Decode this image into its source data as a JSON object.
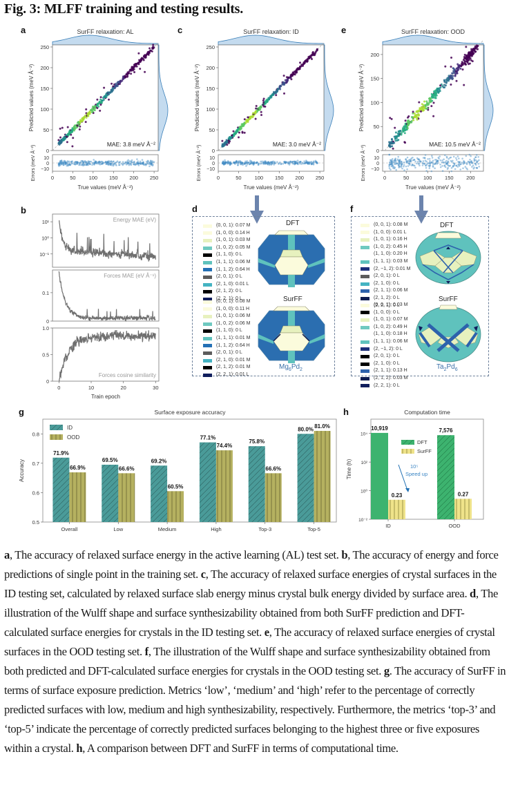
{
  "figure": {
    "title": "Fig. 3: MLFF training and testing results.",
    "panel_letters": [
      "a",
      "b",
      "c",
      "d",
      "e",
      "f",
      "g",
      "h"
    ]
  },
  "chart_data": [
    {
      "id": "a",
      "type": "scatter",
      "title": "SurFF relaxation: AL",
      "xlabel": "True values (meV Å⁻²)",
      "ylabel": "Predicted values (meV Å⁻²)",
      "xlim": [
        0,
        260
      ],
      "ylim": [
        0,
        255
      ],
      "xticks": [
        0,
        50,
        100,
        150,
        200,
        250
      ],
      "yticks": [
        0,
        50,
        100,
        150,
        200,
        250
      ],
      "annotation": "MAE: 3.8 meV Å⁻²",
      "error_ylabel": "Errors (meV Å⁻²)",
      "error_yticks": [
        10,
        0,
        -10
      ],
      "error_ylim": [
        -15,
        15
      ],
      "mae": 3.8,
      "range_true": [
        15,
        250
      ],
      "spread": 6,
      "seed": 11
    },
    {
      "id": "c",
      "type": "scatter",
      "title": "SurFF relaxation: ID",
      "xlabel": "True values (meV Å⁻²)",
      "ylabel": "Predicted values (meV Å⁻²)",
      "xlim": [
        0,
        260
      ],
      "ylim": [
        0,
        255
      ],
      "xticks": [
        0,
        50,
        100,
        150,
        200,
        250
      ],
      "yticks": [
        0,
        50,
        100,
        150,
        200,
        250
      ],
      "annotation": "MAE: 3.0 meV Å⁻²",
      "error_ylabel": "Errors (meV Å⁻²)",
      "error_yticks": [
        10,
        0,
        -10
      ],
      "error_ylim": [
        -15,
        15
      ],
      "mae": 3.0,
      "range_true": [
        10,
        245
      ],
      "spread": 5,
      "seed": 23
    },
    {
      "id": "e",
      "type": "scatter",
      "title": "SurFF relaxation: OOD",
      "xlabel": "True values (meV Å⁻²)",
      "ylabel": "Predicted values (meV Å⁻²)",
      "xlim": [
        -5,
        230
      ],
      "ylim": [
        0,
        220
      ],
      "xticks": [
        0,
        50,
        100,
        150,
        200
      ],
      "yticks": [
        0,
        50,
        100,
        150,
        200
      ],
      "annotation": "MAE: 10.5 meV Å⁻²",
      "error_ylabel": "Errors (meV Å⁻²)",
      "error_yticks": [
        10,
        0,
        -10
      ],
      "error_ylim": [
        -15,
        15
      ],
      "mae": 10.5,
      "range_true": [
        10,
        220
      ],
      "spread": 12,
      "seed": 37
    },
    {
      "id": "b",
      "type": "line",
      "xlabel": "Train epoch",
      "xlim": [
        -2,
        31
      ],
      "xticks": [
        0,
        10,
        20,
        30
      ],
      "subplots": [
        {
          "label": "Energy MAE (eV)",
          "scale": "log",
          "yticks": [
            "10¹",
            "10⁰",
            "10⁻¹"
          ],
          "ytick_values": [
            10,
            1,
            0.1
          ],
          "ylim": [
            0.015,
            30
          ],
          "start": 15,
          "end": 0.04
        },
        {
          "label": "Forces MAE (eV Å⁻¹)",
          "scale": "linear",
          "yticks": [
            "0.1",
            "0"
          ],
          "ytick_values": [
            0.1,
            0
          ],
          "ylim": [
            0,
            0.18
          ],
          "start": 0.17,
          "end": 0.01
        },
        {
          "label": "Forces cosine similarity",
          "scale": "linear",
          "yticks": [
            "1.0",
            "0.5",
            "0"
          ],
          "ytick_values": [
            1.0,
            0.5,
            0
          ],
          "ylim": [
            0,
            1.0
          ],
          "start": 0.0,
          "end": 0.85
        }
      ]
    },
    {
      "id": "g",
      "type": "bar",
      "title": "Surface exposure accuracy",
      "ylabel": "Accuracy",
      "ylim": [
        0.5,
        0.85
      ],
      "yticks": [
        0.5,
        0.6,
        0.7,
        0.8
      ],
      "categories": [
        "Overall",
        "Low",
        "Medium",
        "High",
        "Top-3",
        "Top-5"
      ],
      "series": [
        {
          "name": "ID",
          "values": [
            0.719,
            0.695,
            0.692,
            0.771,
            0.758,
            0.8
          ],
          "labels": [
            "71.9%",
            "69.5%",
            "69.2%",
            "77.1%",
            "75.8%",
            "80.0%"
          ],
          "color": "#4a9b99",
          "hatch": "diagonal"
        },
        {
          "name": "OOD",
          "values": [
            0.669,
            0.666,
            0.605,
            0.744,
            0.666,
            0.81
          ],
          "labels": [
            "66.9%",
            "66.6%",
            "60.5%",
            "74.4%",
            "66.6%",
            "81.0%"
          ],
          "color": "#b5b160",
          "hatch": "vertical"
        }
      ],
      "legend": "top-left"
    },
    {
      "id": "h",
      "type": "bar",
      "title": "Computation time",
      "ylabel": "Time (h)",
      "scale": "log",
      "ylim_exp": [
        -2,
        5
      ],
      "yticks": [
        "10⁻²",
        "10⁰",
        "10²",
        "10⁴"
      ],
      "ytick_exps": [
        -2,
        0,
        2,
        4
      ],
      "categories": [
        "ID",
        "OOD"
      ],
      "series": [
        {
          "name": "DFT",
          "values": [
            10919,
            7576
          ],
          "labels": [
            "10,919",
            "7,576"
          ],
          "color": "#3db36f"
        },
        {
          "name": "SurFF",
          "values": [
            0.23,
            0.27
          ],
          "labels": [
            "0.23",
            "0.27"
          ],
          "color": "#efe38a"
        }
      ],
      "annotation": {
        "line1": "10⁵",
        "line2": "Speed up"
      },
      "legend": "center"
    }
  ],
  "wulff": {
    "d": {
      "formula_main": "Mg",
      "formula_sub1": "6",
      "formula_mid": "Pd",
      "formula_sub2": "2",
      "labels": [
        "DFT",
        "SurFF"
      ],
      "dft_legend": [
        {
          "text": "(0, 0, 1): 0.07 M",
          "color": "#fbfbdc"
        },
        {
          "text": "(1, 0, 0): 0.14 H",
          "color": "#fbfbdc"
        },
        {
          "text": "(1, 0, 1): 0.03 M",
          "color": "#e7f1be"
        },
        {
          "text": "(1, 0, 2): 0.05 M",
          "color": "#6ec9c0"
        },
        {
          "text": "(1, 1, 0): 0 L",
          "color": "#000000"
        },
        {
          "text": "(1, 1, 1): 0.06 M",
          "color": "#5fc2bd"
        },
        {
          "text": "(1, 1, 2): 0.64 H",
          "color": "#2370b5"
        },
        {
          "text": "(2, 0, 1): 0 L",
          "color": "#5c5c5c"
        },
        {
          "text": "(2, 1, 0): 0.01 L",
          "color": "#44b3c2"
        },
        {
          "text": "(2, 1, 2): 0 L",
          "color": "#000000"
        },
        {
          "text": "(2, 2, 1): 0 L",
          "color": "#101d5c"
        }
      ],
      "surff_legend": [
        {
          "text": "(0, 0, 1): 0.08 M",
          "color": "#fbfbdc"
        },
        {
          "text": "(1, 0, 0): 0.11 H",
          "color": "#fbfbdc"
        },
        {
          "text": "(1, 0, 1): 0.06 M",
          "color": "#e7f1be"
        },
        {
          "text": "(1, 0, 2): 0.06 M",
          "color": "#6ec9c0"
        },
        {
          "text": "(1, 1, 0): 0 L",
          "color": "#000000"
        },
        {
          "text": "(1, 1, 1): 0.01 M",
          "color": "#5fc2bd"
        },
        {
          "text": "(1, 1, 2): 0.64 H",
          "color": "#2370b5"
        },
        {
          "text": "(2, 0, 1): 0 L",
          "color": "#5c5c5c"
        },
        {
          "text": "(2, 1, 0): 0.01 M",
          "color": "#44b3c2"
        },
        {
          "text": "(2, 1, 2): 0.01 M",
          "color": "#000000"
        },
        {
          "text": "(2, 2, 1): 0.01 L",
          "color": "#101d5c"
        }
      ]
    },
    "f": {
      "formula_main": "Ta",
      "formula_sub1": "2",
      "formula_mid": "Pd",
      "formula_sub2": "6",
      "labels": [
        "DFT",
        "SurFF"
      ],
      "dft_legend": [
        {
          "text": "(0, 0, 1): 0.08 M",
          "color": "#fbfbdc"
        },
        {
          "text": "(1, 0, 0): 0.01 L",
          "color": "#fbfbdc"
        },
        {
          "text": "(1, 0, 1): 0.16 H",
          "color": "#e7f1be"
        },
        {
          "text": "(1, 0, 2): 0.45 H",
          "color": "#6ec9c0"
        },
        {
          "text": "(1, 1, 0): 0.20 H",
          "color": "#ffffff"
        },
        {
          "text": "(1, 1, 1): 0.03 M",
          "color": "#5fc2bd"
        },
        {
          "text": "(2, −1, 2): 0.01 M",
          "color": "#1b2f7a"
        },
        {
          "text": "(2, 0, 1): 0 L",
          "color": "#5c5c5c"
        },
        {
          "text": "(2, 1, 0): 0 L",
          "color": "#44b3c2"
        },
        {
          "text": "(2, 1, 1): 0.06 M",
          "color": "#2d62ac"
        },
        {
          "text": "(2, 1, 2): 0 L",
          "color": "#0d1c50"
        },
        {
          "text": "(2, 2, 1): 0 L",
          "color": "#101d5c"
        }
      ],
      "surff_legend": [
        {
          "text": "(0, 0, 1): 0.03 M",
          "color": "#fbfbdc"
        },
        {
          "text": "(1, 0, 0): 0 L",
          "color": "#000000"
        },
        {
          "text": "(1, 0, 1): 0.07 M",
          "color": "#e7f1be"
        },
        {
          "text": "(1, 0, 2): 0.49 H",
          "color": "#6ec9c0"
        },
        {
          "text": "(1, 1, 0): 0.18 H",
          "color": "#ffffff"
        },
        {
          "text": "(1, 1, 1): 0.06 M",
          "color": "#5fc2bd"
        },
        {
          "text": "(2, −1, 2): 0 L",
          "color": "#1b2f7a"
        },
        {
          "text": "(2, 0, 1): 0 L",
          "color": "#000000"
        },
        {
          "text": "(2, 1, 0): 0 L",
          "color": "#000000"
        },
        {
          "text": "(2, 1, 1): 0.13 H",
          "color": "#2d62ac"
        },
        {
          "text": "(2, 1, 2): 0.03 M",
          "color": "#0d1c50"
        },
        {
          "text": "(2, 2, 1): 0 L",
          "color": "#101d5c"
        }
      ]
    }
  },
  "caption": {
    "a_label": "a",
    "a_text": ", The accuracy of relaxed surface energy in the active learning (AL) test set. ",
    "b_label": "b",
    "b_text": ", The accuracy of energy and force predictions of single point in the training set. ",
    "c_label": "c",
    "c_text": ", The accuracy of relaxed surface energies of crystal surfaces in the ID testing set, calculated by relaxed surface slab energy minus crystal bulk energy divided by surface area. ",
    "d_label": "d",
    "d_text": ", The illustration of the Wulff shape and surface synthesizability obtained from both SurFF prediction and DFT-calculated surface energies for crystals in the ID testing set. ",
    "e_label": "e",
    "e_text": ", The accuracy of relaxed surface energies of crystal surfaces in the OOD testing set. ",
    "f_label": "f",
    "f_text": ", The illustration of the Wulff shape and surface synthesizability obtained from both predicted and DFT-calculated surface energies for crystals in the OOD testing set. ",
    "g_label": "g",
    "g_text": ". The accuracy of SurFF in terms of surface exposure prediction. Metrics ‘low’, ‘medium’ and ‘high’ refer to the percentage of correctly predicted surfaces with low, medium and high synthesizability, respectively. Furthermore, the metrics ‘top-3’ and ‘top-5’ indicate the percentage of correctly predicted surfaces belonging to the highest three or five exposures within a crystal. ",
    "h_label": "h",
    "h_text": ", A comparison between DFT and SurFF in terms of computational time."
  }
}
